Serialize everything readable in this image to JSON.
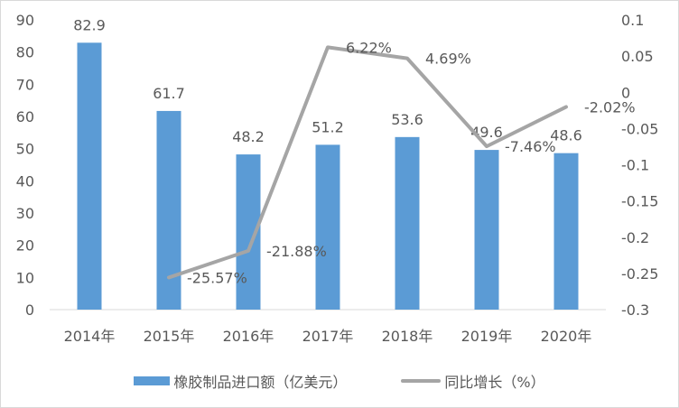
{
  "chart_data": {
    "type": "bar+line",
    "categories": [
      "2014年",
      "2015年",
      "2016年",
      "2017年",
      "2018年",
      "2019年",
      "2020年"
    ],
    "series": [
      {
        "name": "橡胶制品进口额（亿美元）",
        "type": "bar",
        "axis": "left",
        "color": "#5b9bd5",
        "values": [
          82.9,
          61.7,
          48.2,
          51.2,
          53.6,
          49.6,
          48.6
        ],
        "labels": [
          "82.9",
          "61.7",
          "48.2",
          "51.2",
          "53.6",
          "49.6",
          "48.6"
        ]
      },
      {
        "name": "同比增长（%）",
        "type": "line",
        "axis": "right",
        "color": "#a5a5a5",
        "values": [
          null,
          -0.2557,
          -0.2188,
          0.0622,
          0.0469,
          -0.0746,
          -0.0202
        ],
        "labels": [
          "",
          "-25.57%",
          "-21.88%",
          "6.22%",
          "4.69%",
          "-7.46%",
          "-2.02%"
        ]
      }
    ],
    "y_left": {
      "ylim": [
        0,
        90
      ],
      "ticks": [
        "0",
        "10",
        "20",
        "30",
        "40",
        "50",
        "60",
        "70",
        "80",
        "90"
      ]
    },
    "y_right": {
      "ylim": [
        -0.3,
        0.1
      ],
      "ticks": [
        "-0.3",
        "-0.25",
        "-0.2",
        "-0.15",
        "-0.1",
        "-0.05",
        "0",
        "0.05",
        "0.1"
      ]
    },
    "legend_position": "bottom",
    "grid": false
  }
}
